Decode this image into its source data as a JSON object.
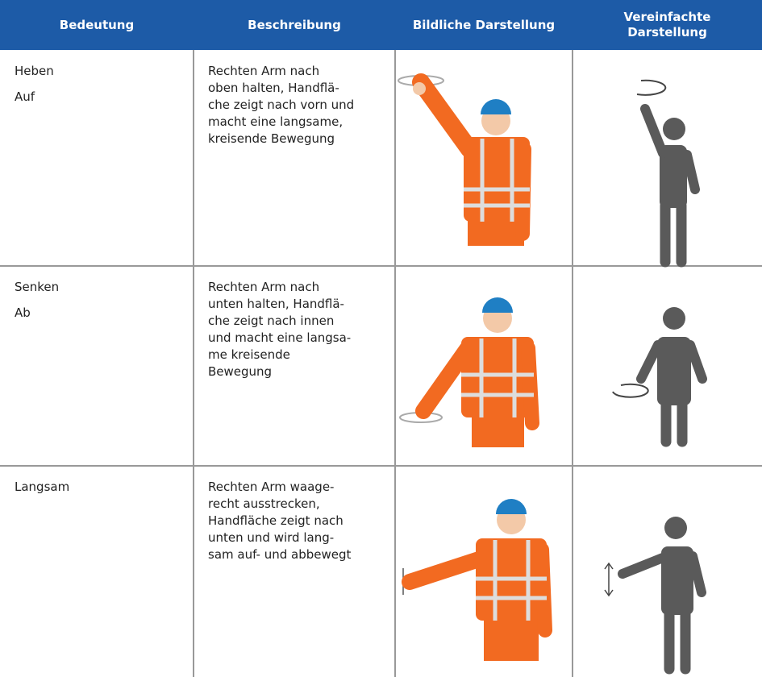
{
  "header": {
    "columns": [
      "Bedeutung",
      "Beschreibung",
      "Bildliche Darstellung",
      "Vereinfachte Darstellung"
    ]
  },
  "rows": [
    {
      "meaning": [
        "Heben",
        "Auf"
      ],
      "description": [
        "Rechten Arm nach",
        "oben halten, Handflä-",
        "che zeigt nach vorn und",
        "macht eine langsame,",
        "kreisende Bewegung"
      ]
    },
    {
      "meaning": [
        "Senken",
        "Ab"
      ],
      "description": [
        "Rechten Arm nach",
        "unten halten, Handflä-",
        "che zeigt nach innen",
        "und macht eine langsa-",
        "me kreisende",
        "Bewegung"
      ]
    },
    {
      "meaning": [
        "Langsam"
      ],
      "description": [
        "Rechten Arm waage-",
        "recht ausstrecken,",
        "Handfläche zeigt nach",
        "unten und wird lang-",
        "sam auf- und abbewegt"
      ]
    }
  ]
}
